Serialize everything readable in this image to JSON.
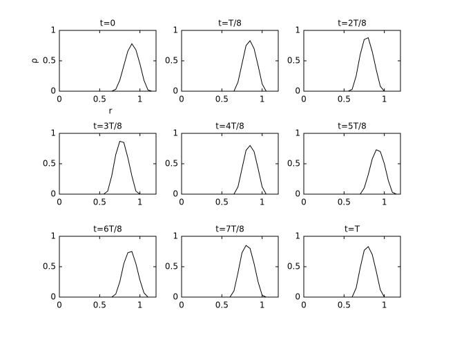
{
  "chart_data": [
    {
      "type": "line",
      "title": "t=0",
      "xlabel": "r",
      "ylabel": "ρ",
      "color": "#000000",
      "xlim": [
        0,
        1.2
      ],
      "ylim": [
        0,
        1
      ],
      "xticks": [
        0,
        0.5,
        1
      ],
      "yticks": [
        0,
        0.5,
        1
      ],
      "x": [
        0,
        0.05,
        0.1,
        0.15,
        0.2,
        0.25,
        0.3,
        0.35,
        0.4,
        0.45,
        0.5,
        0.55,
        0.6,
        0.65,
        0.7,
        0.75,
        0.8,
        0.85,
        0.9,
        0.95,
        1,
        1.05,
        1.1,
        1.15,
        1.2
      ],
      "values": [
        0,
        0,
        0,
        0,
        0,
        0,
        0,
        0,
        0,
        0,
        0,
        0,
        0,
        0,
        0.03,
        0.18,
        0.42,
        0.66,
        0.78,
        0.68,
        0.45,
        0.18,
        0.02,
        0,
        0
      ]
    },
    {
      "type": "line",
      "title": "t=T/8",
      "color": "#000000",
      "xlim": [
        0,
        1.2
      ],
      "ylim": [
        0,
        1
      ],
      "xticks": [
        0,
        0.5,
        1
      ],
      "yticks": [
        0,
        0.5,
        1
      ],
      "x": [
        0,
        0.05,
        0.1,
        0.15,
        0.2,
        0.25,
        0.3,
        0.35,
        0.4,
        0.45,
        0.5,
        0.55,
        0.6,
        0.65,
        0.7,
        0.75,
        0.8,
        0.85,
        0.9,
        0.95,
        1,
        1.05,
        1.1,
        1.15,
        1.2
      ],
      "values": [
        0,
        0,
        0,
        0,
        0,
        0,
        0,
        0,
        0,
        0,
        0,
        0,
        0,
        0,
        0.15,
        0.45,
        0.75,
        0.83,
        0.7,
        0.42,
        0.12,
        0,
        0,
        0,
        0
      ]
    },
    {
      "type": "line",
      "title": "t=2T/8",
      "color": "#000000",
      "xlim": [
        0,
        1.2
      ],
      "ylim": [
        0,
        1
      ],
      "xticks": [
        0,
        0.5,
        1
      ],
      "yticks": [
        0,
        0.5,
        1
      ],
      "x": [
        0,
        0.05,
        0.1,
        0.15,
        0.2,
        0.25,
        0.3,
        0.35,
        0.4,
        0.45,
        0.5,
        0.55,
        0.6,
        0.65,
        0.7,
        0.75,
        0.8,
        0.85,
        0.9,
        0.95,
        1,
        1.05,
        1.1,
        1.15,
        1.2
      ],
      "values": [
        0,
        0,
        0,
        0,
        0,
        0,
        0,
        0,
        0,
        0,
        0,
        0,
        0.03,
        0.25,
        0.6,
        0.85,
        0.88,
        0.65,
        0.35,
        0.08,
        0,
        0,
        0,
        0,
        0
      ]
    },
    {
      "type": "line",
      "title": "t=3T/8",
      "color": "#000000",
      "xlim": [
        0,
        1.2
      ],
      "ylim": [
        0,
        1
      ],
      "xticks": [
        0,
        0.5,
        1
      ],
      "yticks": [
        0,
        0.5,
        1
      ],
      "x": [
        0,
        0.05,
        0.1,
        0.15,
        0.2,
        0.25,
        0.3,
        0.35,
        0.4,
        0.45,
        0.5,
        0.55,
        0.6,
        0.65,
        0.7,
        0.75,
        0.8,
        0.85,
        0.9,
        0.95,
        1,
        1.05,
        1.1,
        1.15,
        1.2
      ],
      "values": [
        0,
        0,
        0,
        0,
        0,
        0,
        0,
        0,
        0,
        0,
        0,
        0,
        0.05,
        0.3,
        0.65,
        0.87,
        0.85,
        0.6,
        0.3,
        0.05,
        0,
        0,
        0,
        0,
        0
      ]
    },
    {
      "type": "line",
      "title": "t=4T/8",
      "color": "#000000",
      "xlim": [
        0,
        1.2
      ],
      "ylim": [
        0,
        1
      ],
      "xticks": [
        0,
        0.5,
        1
      ],
      "yticks": [
        0,
        0.5,
        1
      ],
      "x": [
        0,
        0.05,
        0.1,
        0.15,
        0.2,
        0.25,
        0.3,
        0.35,
        0.4,
        0.45,
        0.5,
        0.55,
        0.6,
        0.65,
        0.7,
        0.75,
        0.8,
        0.85,
        0.9,
        0.95,
        1,
        1.05,
        1.1,
        1.15,
        1.2
      ],
      "values": [
        0,
        0,
        0,
        0,
        0,
        0,
        0,
        0,
        0,
        0,
        0,
        0,
        0,
        0,
        0.12,
        0.42,
        0.72,
        0.8,
        0.7,
        0.42,
        0.12,
        0,
        0,
        0,
        0
      ]
    },
    {
      "type": "line",
      "title": "t=5T/8",
      "color": "#000000",
      "xlim": [
        0,
        1.2
      ],
      "ylim": [
        0,
        1
      ],
      "xticks": [
        0,
        0.5,
        1
      ],
      "yticks": [
        0,
        0.5,
        1
      ],
      "x": [
        0,
        0.05,
        0.1,
        0.15,
        0.2,
        0.25,
        0.3,
        0.35,
        0.4,
        0.45,
        0.5,
        0.55,
        0.6,
        0.65,
        0.7,
        0.75,
        0.8,
        0.85,
        0.9,
        0.95,
        1,
        1.05,
        1.1,
        1.15,
        1.2
      ],
      "values": [
        0,
        0,
        0,
        0,
        0,
        0,
        0,
        0,
        0,
        0,
        0,
        0,
        0,
        0,
        0,
        0.1,
        0.32,
        0.58,
        0.73,
        0.7,
        0.5,
        0.22,
        0.03,
        0,
        0
      ]
    },
    {
      "type": "line",
      "title": "t=6T/8",
      "color": "#000000",
      "xlim": [
        0,
        1.2
      ],
      "ylim": [
        0,
        1
      ],
      "xticks": [
        0,
        0.5,
        1
      ],
      "yticks": [
        0,
        0.5,
        1
      ],
      "x": [
        0,
        0.05,
        0.1,
        0.15,
        0.2,
        0.25,
        0.3,
        0.35,
        0.4,
        0.45,
        0.5,
        0.55,
        0.6,
        0.65,
        0.7,
        0.75,
        0.8,
        0.85,
        0.9,
        0.95,
        1,
        1.05,
        1.1,
        1.15,
        1.2
      ],
      "values": [
        0,
        0,
        0,
        0,
        0,
        0,
        0,
        0,
        0,
        0,
        0,
        0,
        0,
        0,
        0.05,
        0.25,
        0.55,
        0.73,
        0.75,
        0.55,
        0.28,
        0.07,
        0,
        0,
        0
      ]
    },
    {
      "type": "line",
      "title": "t=7T/8",
      "color": "#000000",
      "xlim": [
        0,
        1.2
      ],
      "ylim": [
        0,
        1
      ],
      "xticks": [
        0,
        0.5,
        1
      ],
      "yticks": [
        0,
        0.5,
        1
      ],
      "x": [
        0,
        0.05,
        0.1,
        0.15,
        0.2,
        0.25,
        0.3,
        0.35,
        0.4,
        0.45,
        0.5,
        0.55,
        0.6,
        0.65,
        0.7,
        0.75,
        0.8,
        0.85,
        0.9,
        0.95,
        1,
        1.05,
        1.1,
        1.15,
        1.2
      ],
      "values": [
        0,
        0,
        0,
        0,
        0,
        0,
        0,
        0,
        0,
        0,
        0,
        0,
        0,
        0.1,
        0.4,
        0.73,
        0.85,
        0.8,
        0.55,
        0.25,
        0.03,
        0,
        0,
        0,
        0
      ]
    },
    {
      "type": "line",
      "title": "t=T",
      "color": "#000000",
      "xlim": [
        0,
        1.2
      ],
      "ylim": [
        0,
        1
      ],
      "xticks": [
        0,
        0.5,
        1
      ],
      "yticks": [
        0,
        0.5,
        1
      ],
      "x": [
        0,
        0.05,
        0.1,
        0.15,
        0.2,
        0.25,
        0.3,
        0.35,
        0.4,
        0.45,
        0.5,
        0.55,
        0.6,
        0.65,
        0.7,
        0.75,
        0.8,
        0.85,
        0.9,
        0.95,
        1,
        1.05,
        1.1,
        1.15,
        1.2
      ],
      "values": [
        0,
        0,
        0,
        0,
        0,
        0,
        0,
        0,
        0,
        0,
        0,
        0,
        0,
        0.15,
        0.48,
        0.77,
        0.83,
        0.7,
        0.42,
        0.12,
        0,
        0,
        0,
        0,
        0
      ]
    }
  ]
}
